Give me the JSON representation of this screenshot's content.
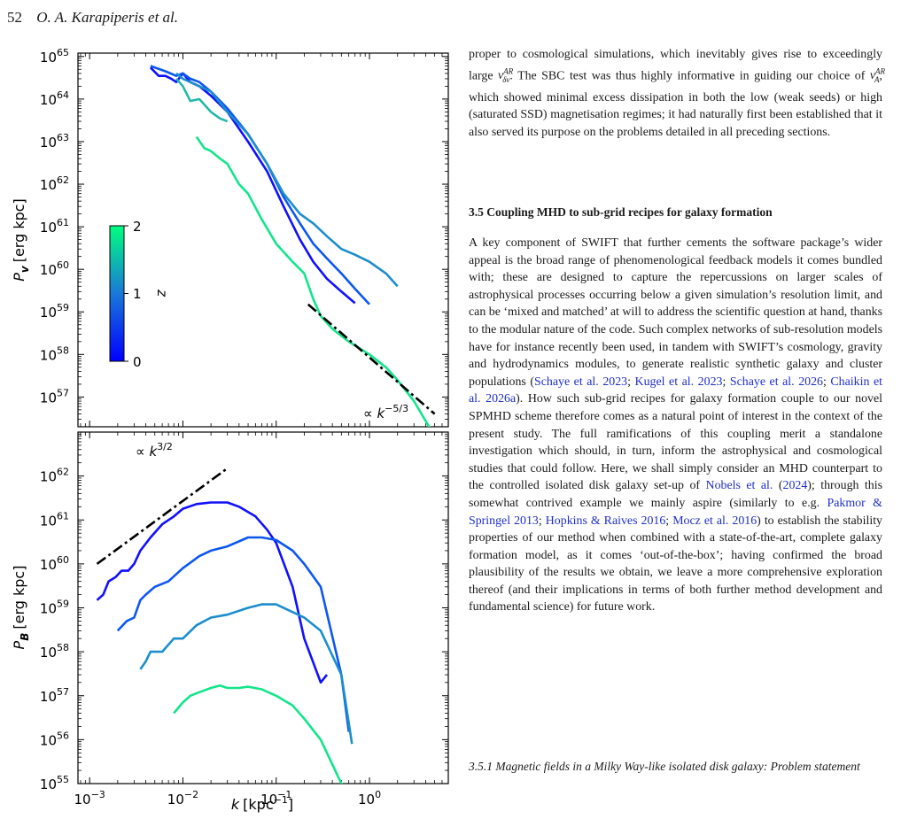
{
  "header": {
    "page_number": "52",
    "authors": "O. A. Karapiperis et al."
  },
  "figure": {
    "top_panel": {
      "ylabel": "P",
      "ylabel_sub": "v",
      "ylabel_units": "[erg kpc]",
      "slope_label": "∝ k",
      "slope_exp": "−5/3",
      "colorbar": {
        "label": "z",
        "ticks": [
          "0",
          "1",
          "2"
        ],
        "colors": [
          "#0000ff",
          "#00ff80"
        ]
      },
      "yticks": [
        "10",
        "10",
        "10",
        "10",
        "10",
        "10",
        "10",
        "10",
        "10"
      ],
      "ytick_exps": [
        "57",
        "58",
        "59",
        "60",
        "61",
        "62",
        "63",
        "64",
        "65"
      ]
    },
    "bottom_panel": {
      "ylabel": "P",
      "ylabel_sub": "B",
      "ylabel_units": "[erg kpc]",
      "slope_label": "∝ k",
      "slope_exp": "3/2",
      "yticks": [
        "10",
        "10",
        "10",
        "10",
        "10",
        "10",
        "10",
        "10"
      ],
      "ytick_exps": [
        "55",
        "56",
        "57",
        "58",
        "59",
        "60",
        "61",
        "62"
      ]
    },
    "xlabel": "k",
    "xlabel_units": "[kpc",
    "xlabel_exp": "−1",
    "xlabel_close": "]",
    "xticks": [
      "10",
      "10",
      "10",
      "10"
    ],
    "xtick_exps": [
      "−3",
      "−2",
      "−1",
      "0"
    ]
  },
  "chart_data": [
    {
      "type": "line",
      "title": "",
      "xlabel": "k [kpc⁻¹]",
      "ylabel": "P_v [erg kpc]",
      "xscale": "log",
      "yscale": "log",
      "xlim": [
        0.00075,
        7
      ],
      "ylim": [
        2e+56,
        1.2e+65
      ],
      "colorbar": {
        "label": "z",
        "range": [
          0,
          2
        ]
      },
      "series": [
        {
          "z": 0.0,
          "color": "#1010ff",
          "x": [
            0.0045,
            0.0055,
            0.0065,
            0.0075,
            0.0085,
            0.01,
            0.012,
            0.015,
            0.02,
            0.03,
            0.05,
            0.08,
            0.12,
            0.18,
            0.25,
            0.35,
            0.5,
            0.7
          ],
          "y": [
            5.5e+64,
            3.5e+64,
            3.5e+64,
            3e+64,
            2.5e+64,
            4e+64,
            2.5e+64,
            2e+64,
            1.2e+64,
            5e+63,
            1e+63,
            2e+62,
            3e+61,
            5e+60,
            1.5e+60,
            6e+59,
            3e+59,
            1.6e+59
          ]
        },
        {
          "z": 0.5,
          "color": "#0c57f0",
          "x": [
            0.0045,
            0.0065,
            0.0085,
            0.01,
            0.012,
            0.015,
            0.02,
            0.03,
            0.05,
            0.08,
            0.12,
            0.18,
            0.25,
            0.35,
            0.5,
            0.7,
            1.0
          ],
          "y": [
            6e+64,
            4.5e+64,
            3.5e+64,
            4e+64,
            3e+64,
            2.5e+64,
            1.5e+64,
            6e+63,
            1.5e+63,
            3e+62,
            5e+61,
            1.2e+61,
            4e+60,
            1.8e+60,
            8e+59,
            3.5e+59,
            1.5e+59
          ]
        },
        {
          "z": 1.0,
          "color": "#1b8ecc",
          "x": [
            0.0085,
            0.01,
            0.012,
            0.015,
            0.02,
            0.03,
            0.05,
            0.08,
            0.12,
            0.18,
            0.25,
            0.35,
            0.5,
            0.7,
            1.0,
            1.5,
            2.0
          ],
          "y": [
            4e+64,
            3e+64,
            2.5e+64,
            2e+64,
            1.5e+64,
            5e+63,
            1.5e+63,
            3e+62,
            6e+61,
            2e+61,
            1.2e+61,
            6e+60,
            3e+60,
            2.2e+60,
            1.5e+60,
            8e+59,
            4e+59
          ]
        },
        {
          "z": 1.5,
          "color": "#24b8a8",
          "x": [
            0.0085,
            0.01,
            0.012,
            0.015,
            0.02,
            0.025,
            0.03
          ],
          "y": [
            3e+64,
            2e+64,
            9e+63,
            1e+64,
            5e+63,
            3.5e+63,
            3e+63
          ]
        },
        {
          "z": 2.0,
          "color": "#12e58a",
          "x": [
            0.014,
            0.017,
            0.02,
            0.025,
            0.03,
            0.04,
            0.05,
            0.07,
            0.1,
            0.15,
            0.2,
            0.25,
            0.3,
            0.4,
            0.6,
            1.0,
            1.5,
            2.0,
            3.0,
            5.0
          ],
          "y": [
            1.3e+63,
            7e+62,
            6e+62,
            4e+62,
            3e+62,
            1e+62,
            6e+61,
            1.5e+61,
            4e+60,
            1.5e+60,
            8e+59,
            2e+59,
            8e+58,
            4e+58,
            2e+58,
            1e+58,
            5e+57,
            2.5e+57,
            8e+56,
            1.2e+56
          ]
        }
      ],
      "reference_line": {
        "label": "∝ k^{−5/3}",
        "slope": -1.6667,
        "x": [
          0.22,
          5.0
        ],
        "y": [
          1.5e+59,
          4e+56
        ]
      }
    },
    {
      "type": "line",
      "title": "",
      "xlabel": "k [kpc⁻¹]",
      "ylabel": "P_B [erg kpc]",
      "xscale": "log",
      "yscale": "log",
      "xlim": [
        0.00075,
        7
      ],
      "ylim": [
        1e+55,
        1e+63
      ],
      "series": [
        {
          "z": 0.0,
          "color": "#1010ff",
          "x": [
            0.0012,
            0.0014,
            0.0016,
            0.0019,
            0.0022,
            0.0026,
            0.003,
            0.0035,
            0.0045,
            0.006,
            0.008,
            0.01,
            0.014,
            0.02,
            0.03,
            0.04,
            0.06,
            0.08,
            0.1,
            0.15,
            0.2,
            0.3,
            0.35
          ],
          "y": [
            1.5e+59,
            2e+59,
            4e+59,
            5e+59,
            7e+59,
            7e+59,
            1e+60,
            2e+60,
            4e+60,
            8e+60,
            1.2e+61,
            1.8e+61,
            2.3e+61,
            2.5e+61,
            2.5e+61,
            2e+61,
            1.2e+61,
            6e+60,
            3e+60,
            3e+59,
            2e+58,
            2e+57,
            3e+57
          ]
        },
        {
          "z": 0.5,
          "color": "#0c57f0",
          "x": [
            0.002,
            0.0025,
            0.003,
            0.0035,
            0.004,
            0.005,
            0.007,
            0.01,
            0.015,
            0.02,
            0.03,
            0.05,
            0.07,
            0.1,
            0.15,
            0.2,
            0.3,
            0.5,
            0.6
          ],
          "y": [
            3e+58,
            5e+58,
            6e+58,
            1.5e+59,
            2e+59,
            3e+59,
            4e+59,
            8e+59,
            1.5e+60,
            2e+60,
            2.5e+60,
            4e+60,
            4e+60,
            3.5e+60,
            2e+60,
            1e+60,
            3e+59,
            3e+57,
            1.5e+56
          ]
        },
        {
          "z": 1.0,
          "color": "#1b8ecc",
          "x": [
            0.0035,
            0.004,
            0.0045,
            0.006,
            0.008,
            0.01,
            0.014,
            0.02,
            0.03,
            0.05,
            0.07,
            0.1,
            0.15,
            0.2,
            0.3,
            0.5,
            0.65
          ],
          "y": [
            4e+57,
            6e+57,
            1e+58,
            1e+58,
            2e+58,
            2e+58,
            4e+58,
            6e+58,
            7e+58,
            1e+59,
            1.2e+59,
            1.2e+59,
            8e+58,
            6e+58,
            3e+58,
            3e+57,
            8e+55
          ]
        },
        {
          "z": 2.0,
          "color": "#12e58a",
          "x": [
            0.008,
            0.01,
            0.012,
            0.015,
            0.02,
            0.025,
            0.03,
            0.04,
            0.05,
            0.07,
            0.1,
            0.15,
            0.2,
            0.3,
            0.5,
            0.7
          ],
          "y": [
            4e+56,
            7e+56,
            1e+57,
            1.2e+57,
            1.5e+57,
            1.7e+57,
            1.5e+57,
            1.5e+57,
            1.6e+57,
            1.4e+57,
            1e+57,
            6e+56,
            3e+56,
            1e+56,
            1e+55,
            4e+54
          ]
        }
      ],
      "reference_line": {
        "label": "∝ k^{3/2}",
        "slope": 1.5,
        "x": [
          0.0012,
          0.03
        ],
        "y": [
          1e+60,
          1.5e+62
        ]
      }
    }
  ],
  "text": {
    "p1a": "proper to cosmological simulations, which inevitably gives rise to exceedingly large ",
    "p1_sym1": "v",
    "p1_sup1": "AR",
    "p1_sub1": "δv",
    "p1b": ". The SBC test was thus highly informative in guiding our choice of ",
    "p1_sym2": "v",
    "p1_sup2": "AR",
    "p1_sub2": "A",
    "p1c": ", which showed minimal excess dissipation in both the low (weak seeds) or high (saturated SSD) magnetisation regimes; it had naturally first been established that it also served its purpose on the problems detailed in all preceding sections.",
    "section_heading": "3.5 Coupling MHD to sub-grid recipes for galaxy formation",
    "p2_1": "A key component of SWIFT that further cements the software package’s wider appeal is the broad range of phenomenological feedback models it comes bundled with; these are designed to capture the repercussions on larger scales of astrophysical processes occurring below a given simulation’s resolution limit, and can be ‘mixed and matched’ at will to address the scientific question at hand, thanks to the modular nature of the code. Such complex networks of sub-resolution models have for instance recently been used, in tandem with SWIFT’s cosmology, gravity and hydrodynamics modules, to generate realistic synthetic galaxy and cluster populations (",
    "cite_schaye2023": "Schaye et al. 2023",
    "sep1": "; ",
    "cite_kugel2023": "Kugel et al. 2023",
    "sep2": "; ",
    "cite_schaye2026": "Schaye et al. 2026",
    "sep3": "; ",
    "cite_chaikin2026": "Chaikin et al. 2026a",
    "p2_2": "). How such sub-grid recipes for galaxy formation couple to our novel SPMHD scheme therefore comes as a natural point of interest in the context of the present study. The full ramifications of this coupling merit a standalone investigation which should, in turn, inform the astrophysical and cosmological studies that could follow. Here, we shall simply consider an MHD counterpart to the controlled isolated disk galaxy set-up of ",
    "cite_nobels": "Nobels et al.",
    "nobels_paren_open": " (",
    "cite_nobels_year": "2024",
    "p2_3": "); through this somewhat contrived example we mainly aspire (similarly to e.g. ",
    "cite_pakmor": "Pakmor & Springel 2013",
    "sep4": "; ",
    "cite_hopkins": "Hopkins & Raives 2016",
    "sep5": "; ",
    "cite_mocz": "Mocz et al. 2016",
    "p2_4": ") to establish the stability properties of our method when combined with a state-of-the-art, complete galaxy formation model, as it comes ‘out-of-the-box’; having confirmed the broad plausibility of the results we obtain, we leave a more comprehensive exploration thereof (and their implications in terms of both further method development and fundamental science) for future work.",
    "subsection_heading": "3.5.1 Magnetic fields in a Milky Way-like isolated disk galaxy: Problem statement"
  }
}
